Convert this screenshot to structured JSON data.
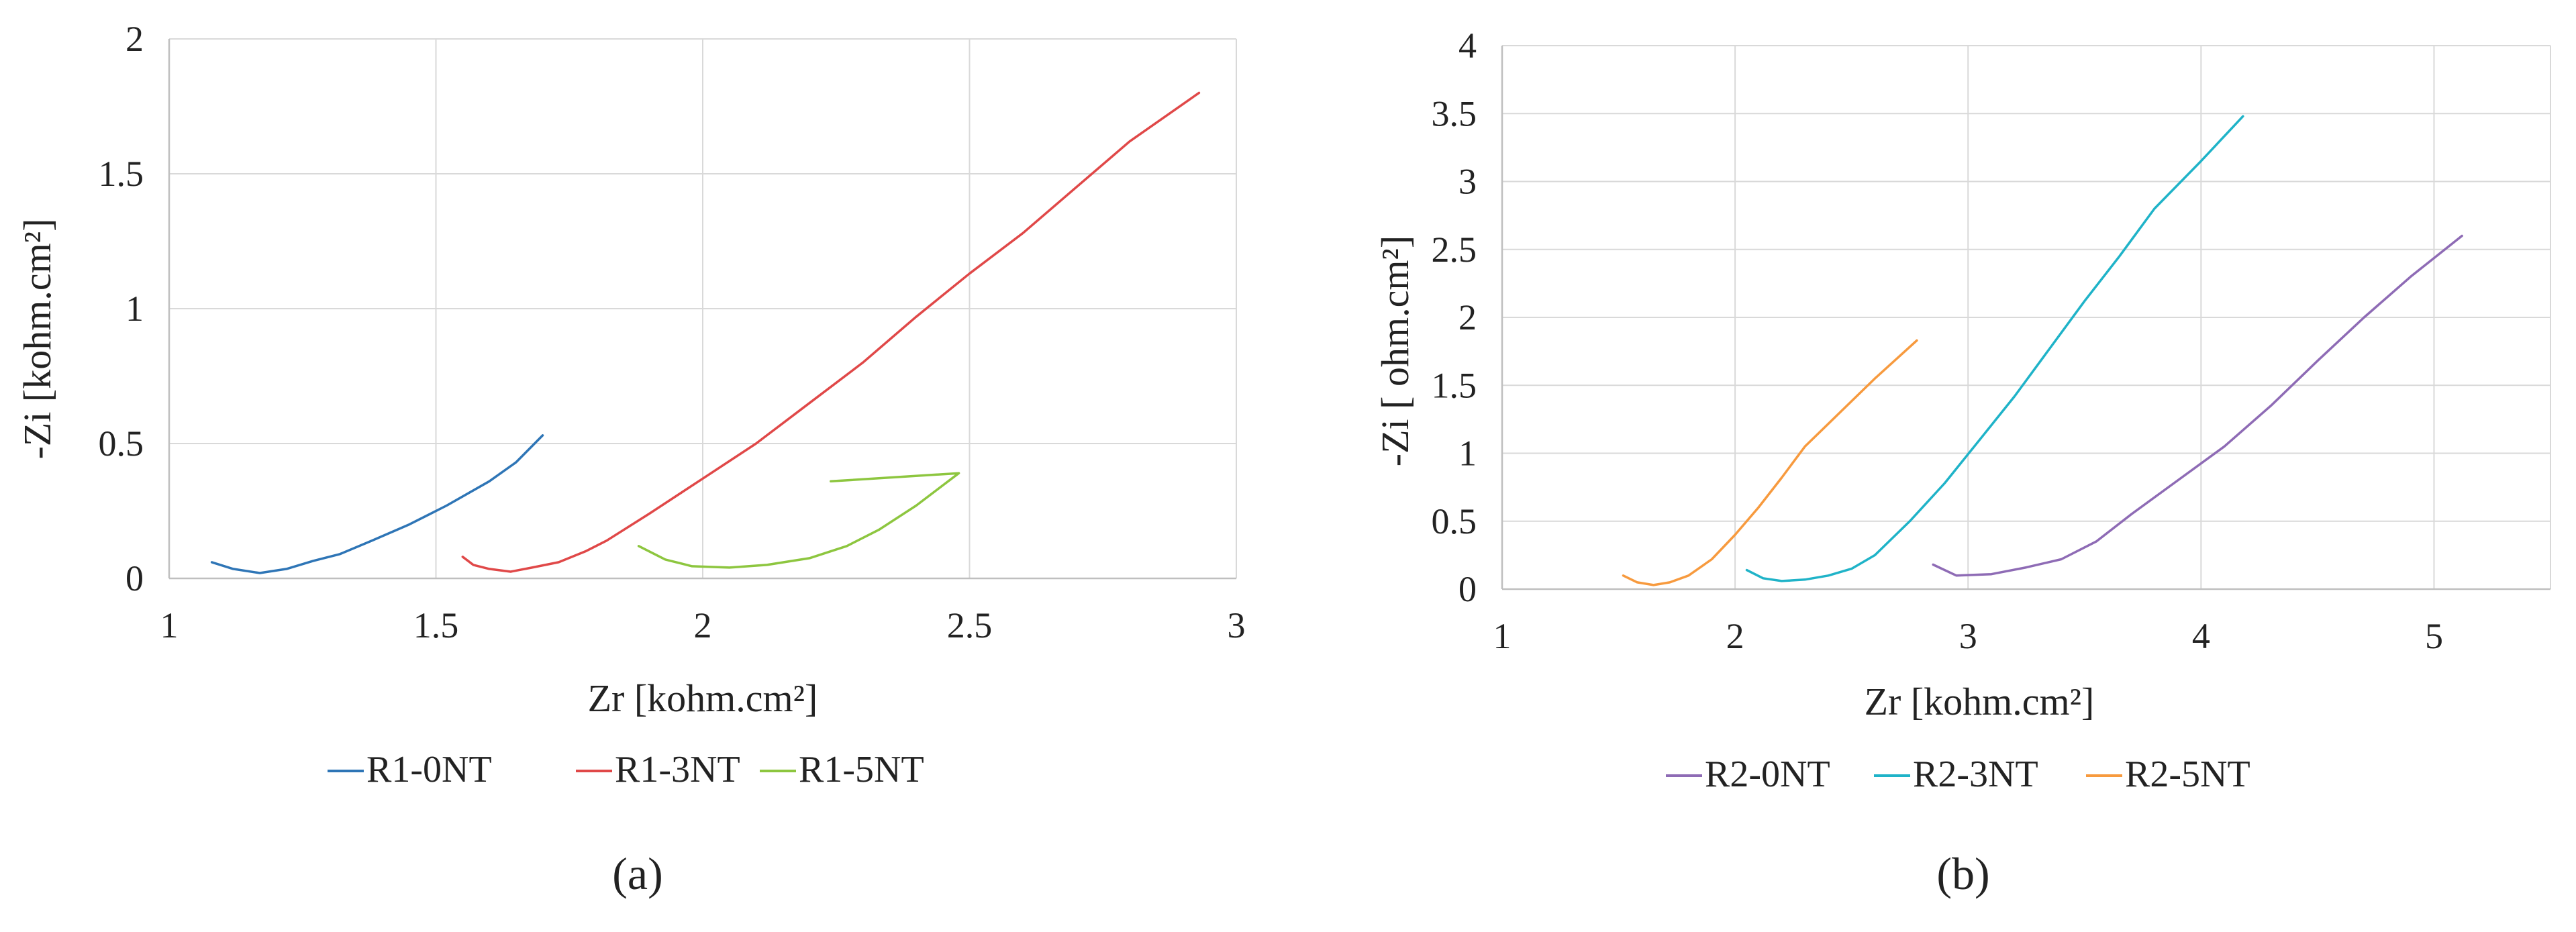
{
  "chart_data": [
    {
      "type": "line",
      "panel_label": "(a)",
      "xlabel": "Zr [kohm.cm²]",
      "ylabel": "-Zi [kohm.cm²]",
      "xlim": [
        1,
        3
      ],
      "ylim": [
        0,
        2
      ],
      "xticks": [
        1,
        1.5,
        2,
        2.5,
        3
      ],
      "yticks": [
        0,
        0.5,
        1,
        1.5,
        2
      ],
      "x_tick_labels": [
        "1",
        "1.5",
        "2",
        "2.5",
        "3"
      ],
      "y_tick_labels": [
        "0",
        "0.5",
        "1",
        "1.5",
        "2"
      ],
      "grid": "vertical and horizontal",
      "legend": "bottom",
      "series": [
        {
          "name": "R1-0NT",
          "color": "#2e75b6",
          "points": [
            [
              1.08,
              0.06
            ],
            [
              1.12,
              0.035
            ],
            [
              1.17,
              0.02
            ],
            [
              1.22,
              0.035
            ],
            [
              1.27,
              0.065
            ],
            [
              1.32,
              0.09
            ],
            [
              1.38,
              0.14
            ],
            [
              1.45,
              0.2
            ],
            [
              1.52,
              0.27
            ],
            [
              1.6,
              0.36
            ],
            [
              1.65,
              0.43
            ],
            [
              1.7,
              0.53
            ]
          ]
        },
        {
          "name": "R1-3NT",
          "color": "#e04848",
          "points": [
            [
              1.55,
              0.08
            ],
            [
              1.57,
              0.05
            ],
            [
              1.6,
              0.035
            ],
            [
              1.64,
              0.025
            ],
            [
              1.68,
              0.04
            ],
            [
              1.73,
              0.06
            ],
            [
              1.78,
              0.1
            ],
            [
              1.82,
              0.14
            ],
            [
              1.9,
              0.24
            ],
            [
              2.0,
              0.37
            ],
            [
              2.1,
              0.5
            ],
            [
              2.2,
              0.65
            ],
            [
              2.3,
              0.8
            ],
            [
              2.4,
              0.97
            ],
            [
              2.5,
              1.13
            ],
            [
              2.6,
              1.28
            ],
            [
              2.7,
              1.45
            ],
            [
              2.8,
              1.62
            ],
            [
              2.93,
              1.8
            ]
          ]
        },
        {
          "name": "R1-5NT",
          "color": "#8dc63f",
          "points": [
            [
              1.88,
              0.12
            ],
            [
              1.93,
              0.07
            ],
            [
              1.98,
              0.045
            ],
            [
              2.05,
              0.04
            ],
            [
              2.12,
              0.05
            ],
            [
              2.2,
              0.075
            ],
            [
              2.27,
              0.12
            ],
            [
              2.33,
              0.18
            ],
            [
              2.4,
              0.27
            ],
            [
              2.48,
              0.39
            ],
            [
              2.24,
              0.36
            ]
          ]
        }
      ]
    },
    {
      "type": "line",
      "panel_label": "(b)",
      "xlabel": "Zr [kohm.cm²]",
      "ylabel": "-Zi [ ohm.cm²]",
      "xlim": [
        1,
        5.5
      ],
      "ylim": [
        0,
        4
      ],
      "xticks": [
        1,
        2,
        3,
        4,
        5
      ],
      "yticks": [
        0,
        0.5,
        1,
        1.5,
        2,
        2.5,
        3,
        3.5,
        4
      ],
      "x_tick_labels": [
        "1",
        "2",
        "3",
        "4",
        "5"
      ],
      "y_tick_labels": [
        "0",
        "0.5",
        "1",
        "1.5",
        "2",
        "2.5",
        "3",
        "3.5",
        "4"
      ],
      "grid": "vertical and horizontal",
      "legend": "bottom",
      "series": [
        {
          "name": "R2-0NT",
          "color": "#8e6bb5",
          "points": [
            [
              2.85,
              0.18
            ],
            [
              2.95,
              0.1
            ],
            [
              3.1,
              0.11
            ],
            [
              3.25,
              0.16
            ],
            [
              3.4,
              0.22
            ],
            [
              3.55,
              0.35
            ],
            [
              3.7,
              0.55
            ],
            [
              3.9,
              0.8
            ],
            [
              4.1,
              1.05
            ],
            [
              4.3,
              1.35
            ],
            [
              4.5,
              1.68
            ],
            [
              4.7,
              2.0
            ],
            [
              4.9,
              2.3
            ],
            [
              5.12,
              2.6
            ]
          ]
        },
        {
          "name": "R2-3NT",
          "color": "#1fb3c8",
          "points": [
            [
              2.05,
              0.14
            ],
            [
              2.12,
              0.08
            ],
            [
              2.2,
              0.06
            ],
            [
              2.3,
              0.07
            ],
            [
              2.4,
              0.1
            ],
            [
              2.5,
              0.15
            ],
            [
              2.6,
              0.25
            ],
            [
              2.75,
              0.5
            ],
            [
              2.9,
              0.78
            ],
            [
              3.05,
              1.1
            ],
            [
              3.2,
              1.42
            ],
            [
              3.35,
              1.77
            ],
            [
              3.5,
              2.12
            ],
            [
              3.65,
              2.45
            ],
            [
              3.8,
              2.8
            ],
            [
              4.0,
              3.15
            ],
            [
              4.18,
              3.48
            ]
          ]
        },
        {
          "name": "R2-5NT",
          "color": "#f79a3e",
          "points": [
            [
              1.52,
              0.1
            ],
            [
              1.58,
              0.05
            ],
            [
              1.65,
              0.03
            ],
            [
              1.72,
              0.05
            ],
            [
              1.8,
              0.1
            ],
            [
              1.9,
              0.22
            ],
            [
              2.0,
              0.4
            ],
            [
              2.1,
              0.6
            ],
            [
              2.2,
              0.82
            ],
            [
              2.3,
              1.05
            ],
            [
              2.45,
              1.3
            ],
            [
              2.6,
              1.55
            ],
            [
              2.78,
              1.83
            ]
          ]
        }
      ]
    }
  ]
}
